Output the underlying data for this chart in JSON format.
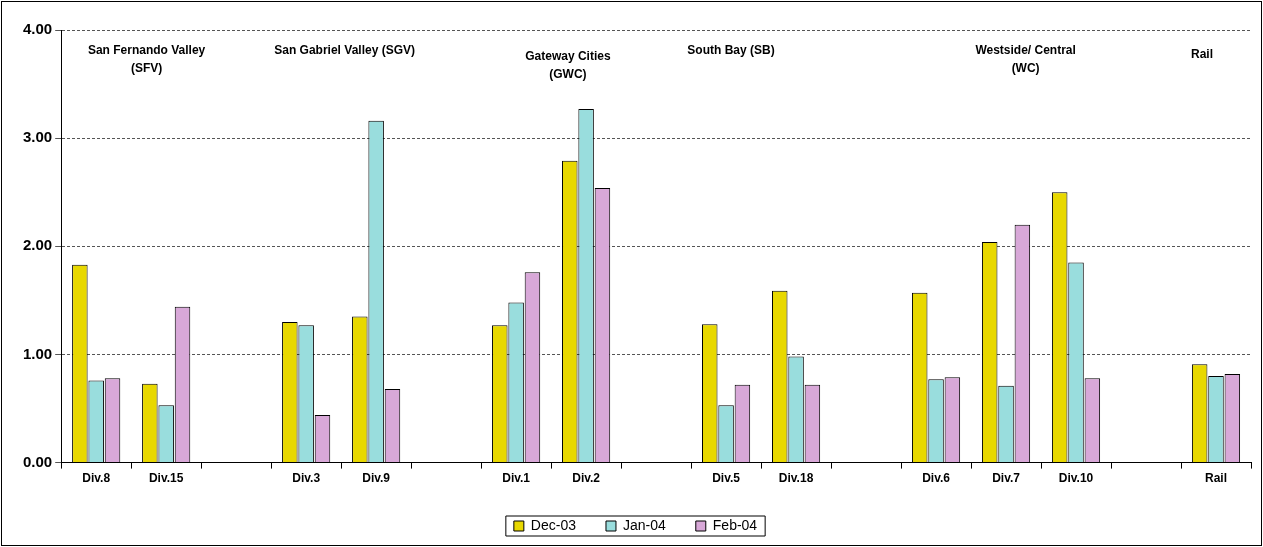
{
  "chart_data": {
    "type": "bar",
    "categories": [
      "Div.8",
      "Div.15",
      null,
      "Div.3",
      "Div.9",
      null,
      "Div.1",
      "Div.2",
      null,
      "Div.5",
      "Div.18",
      null,
      "Div.6",
      "Div.7",
      "Div.10",
      null,
      "Rail"
    ],
    "series": [
      {
        "name": "Dec-03",
        "color": "#e8d800",
        "values": [
          1.83,
          0.73,
          null,
          1.3,
          1.35,
          null,
          1.27,
          2.79,
          null,
          1.28,
          1.59,
          null,
          1.57,
          2.04,
          2.5,
          null,
          0.91
        ]
      },
      {
        "name": "Jan-04",
        "color": "#99dddd",
        "values": [
          0.76,
          0.53,
          null,
          1.27,
          3.16,
          null,
          1.48,
          3.27,
          null,
          0.53,
          0.98,
          null,
          0.77,
          0.71,
          1.85,
          null,
          0.8
        ]
      },
      {
        "name": "Feb-04",
        "color": "#d8a8d8",
        "values": [
          0.78,
          1.44,
          null,
          0.44,
          0.68,
          null,
          1.76,
          2.54,
          null,
          0.72,
          0.72,
          null,
          0.79,
          2.2,
          0.78,
          null,
          0.82
        ]
      }
    ],
    "ylim": [
      0,
      4
    ],
    "yticks": [
      {
        "value": 0,
        "label": "0.00"
      },
      {
        "value": 1,
        "label": "1.00"
      },
      {
        "value": 2,
        "label": "2.00"
      },
      {
        "value": 3,
        "label": "3.00"
      },
      {
        "value": 4,
        "label": "4.00"
      }
    ],
    "annotations": [
      "San Fernando Valley (SFV)",
      "San Gabriel Valley (SGV)",
      "Gateway Cities (GWC)",
      "South Bay (SB)",
      "Westside/ Central (WC)",
      "Rail"
    ],
    "grid": "y",
    "legend": "bottom"
  }
}
